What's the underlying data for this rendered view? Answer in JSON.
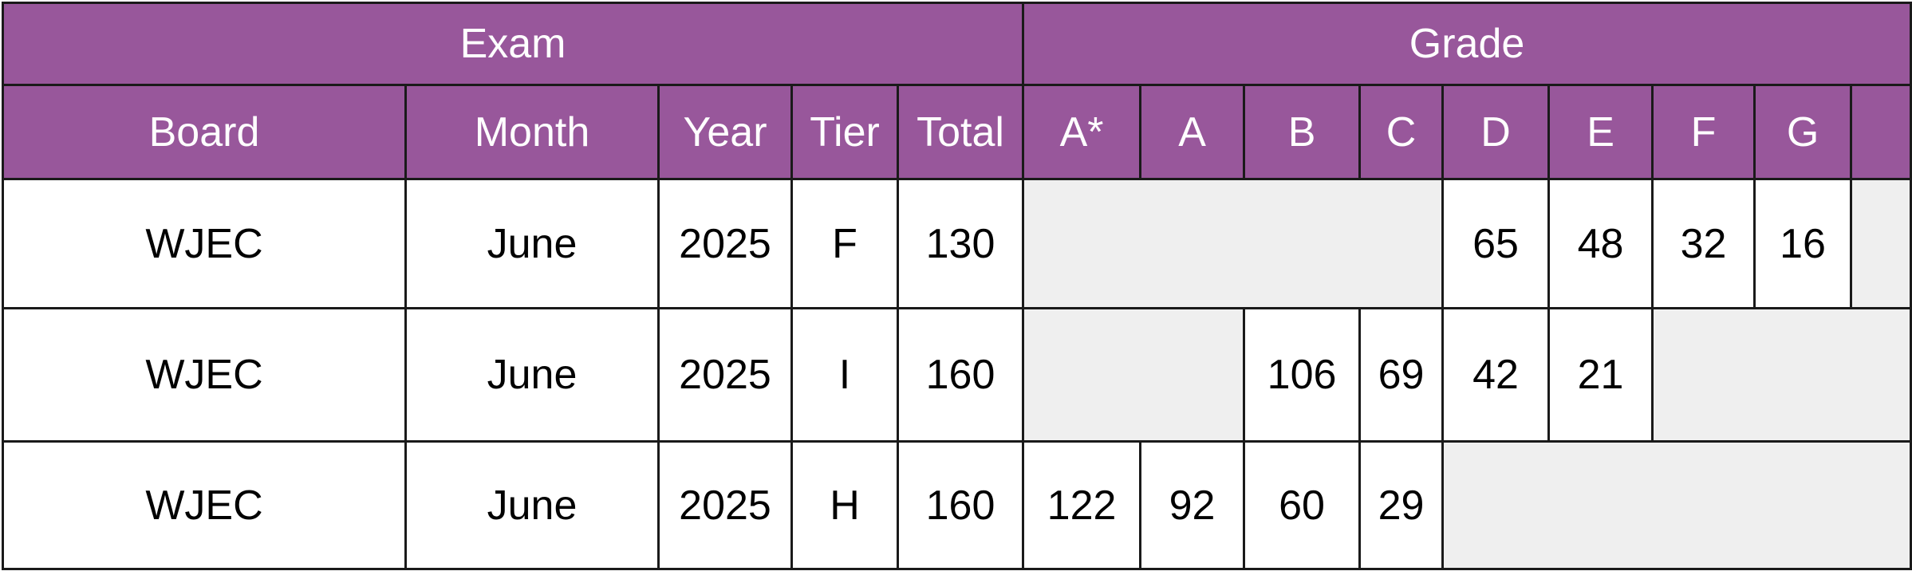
{
  "header": {
    "groups": [
      "Exam",
      "Grade"
    ],
    "columns": [
      "Board",
      "Month",
      "Year",
      "Tier",
      "Total",
      "A*",
      "A",
      "B",
      "C",
      "D",
      "E",
      "F",
      "G"
    ]
  },
  "table": {
    "rows": [
      {
        "board": "WJEC",
        "month": "June",
        "year": 2025,
        "tier": "F",
        "total": 130,
        "grades": [
          null,
          null,
          null,
          null,
          65,
          48,
          32,
          16,
          null
        ]
      },
      {
        "board": "WJEC",
        "month": "June",
        "year": 2025,
        "tier": "I",
        "total": 160,
        "grades": [
          null,
          null,
          106,
          69,
          42,
          21,
          null,
          null,
          null
        ]
      },
      {
        "board": "WJEC",
        "month": "June",
        "year": 2025,
        "tier": "H",
        "total": 160,
        "grades": [
          122,
          92,
          60,
          29,
          null,
          null,
          null,
          null,
          null
        ]
      }
    ]
  }
}
